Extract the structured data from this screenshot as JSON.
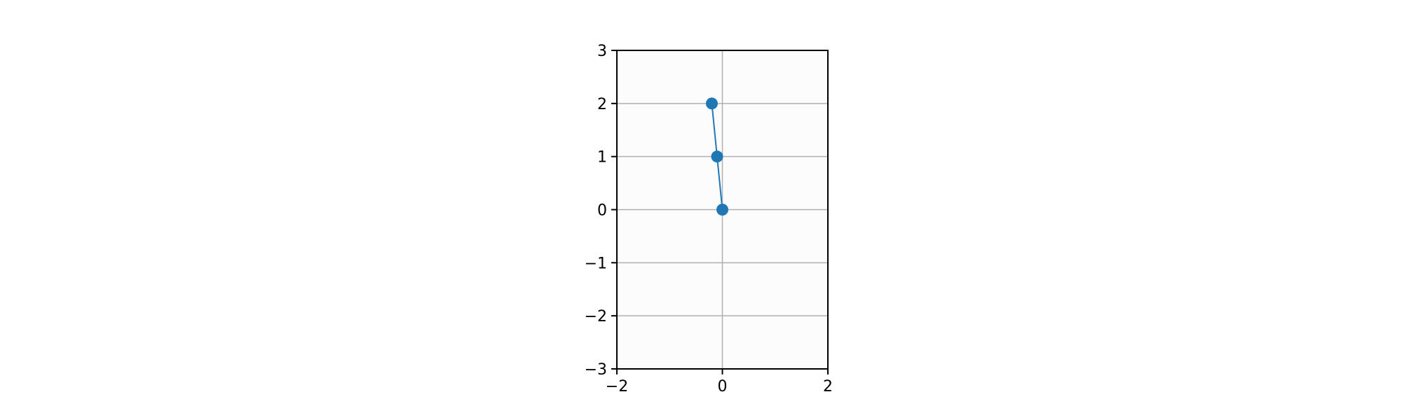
{
  "chart_data": {
    "type": "line",
    "title": "",
    "xlabel": "",
    "ylabel": "",
    "xlim": [
      -2,
      2
    ],
    "ylim": [
      -3,
      3
    ],
    "x_ticks": [
      -2,
      0,
      2
    ],
    "x_tick_labels": [
      "−2",
      "0",
      "2"
    ],
    "y_ticks": [
      -3,
      -2,
      -1,
      0,
      1,
      2,
      3
    ],
    "y_tick_labels": [
      "−3",
      "−2",
      "−1",
      "0",
      "1",
      "2",
      "3"
    ],
    "grid": true,
    "legend": false,
    "series": [
      {
        "x": [
          0.0,
          -0.1,
          -0.2
        ],
        "y": [
          0,
          1,
          2
        ],
        "color": "#1f77b4",
        "marker": "circle"
      }
    ],
    "colors": {
      "plot_background": "#fcfcfc",
      "grid": "#b0b0b0",
      "axes": "#000000"
    }
  }
}
